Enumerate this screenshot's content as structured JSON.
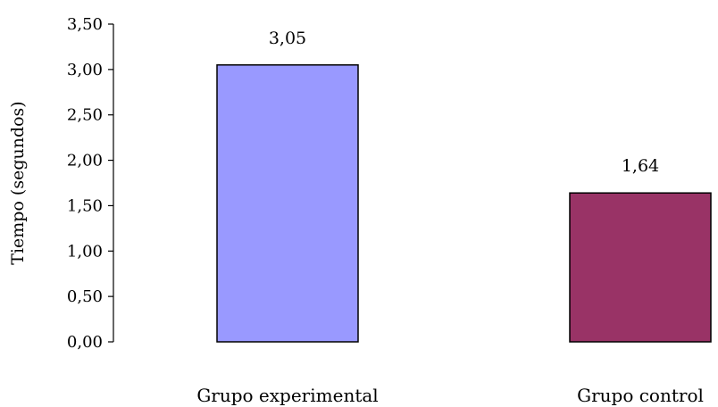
{
  "chart_data": {
    "type": "bar",
    "categories": [
      "Grupo experimental",
      "Grupo control"
    ],
    "values": [
      3.05,
      1.64
    ],
    "data_labels": [
      "3,05",
      "1,64"
    ],
    "ylabel": "Tiempo (segundos)",
    "xlabel": "",
    "ylim": [
      0,
      3.5
    ],
    "ytick_values": [
      0,
      0.5,
      1.0,
      1.5,
      2.0,
      2.5,
      3.0,
      3.5
    ],
    "ytick_labels": [
      "0,00",
      "0,50",
      "1,00",
      "1,50",
      "2,00",
      "2,50",
      "3,00",
      "3,50"
    ],
    "colors": [
      "#9999FF",
      "#993366"
    ],
    "grid": false,
    "legend": "none"
  }
}
